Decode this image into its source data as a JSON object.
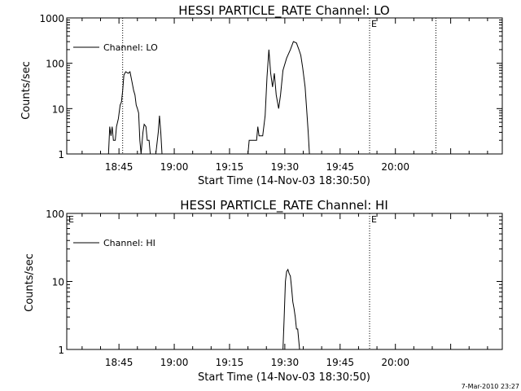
{
  "footer": {
    "stamp": "7-Mar-2010 23:27"
  },
  "chart_data": [
    {
      "type": "line",
      "title": "HESSI PARTICLE_RATE Channel: LO",
      "xlabel": "Start Time (14-Nov-03 18:30:50)",
      "ylabel": "Counts/sec",
      "yscale": "log",
      "ylim": [
        1,
        1000
      ],
      "yticks": [
        "1",
        "10",
        "100",
        "1000"
      ],
      "xlim": [
        "18:30:50",
        "20:29:00"
      ],
      "xticks": [
        "18:45",
        "19:00",
        "19:15",
        "19:30",
        "19:45",
        "20:00"
      ],
      "legend": {
        "position": "top-left",
        "entries": [
          "Channel: LO"
        ]
      },
      "markers": {
        "label": "E",
        "times": [
          "18:46:00",
          "19:53:00",
          "20:11:00"
        ]
      },
      "series": [
        {
          "name": "Channel: LO",
          "points": [
            [
              "18:42:00",
              1
            ],
            [
              "18:42:10",
              1
            ],
            [
              "18:42:30",
              4
            ],
            [
              "18:42:50",
              2.5
            ],
            [
              "18:43:10",
              4
            ],
            [
              "18:43:30",
              2
            ],
            [
              "18:44:00",
              2
            ],
            [
              "18:44:20",
              4
            ],
            [
              "18:44:50",
              6
            ],
            [
              "18:45:20",
              12
            ],
            [
              "18:45:40",
              14
            ],
            [
              "18:46:00",
              25
            ],
            [
              "18:46:20",
              55
            ],
            [
              "18:46:50",
              65
            ],
            [
              "18:47:30",
              60
            ],
            [
              "18:48:00",
              65
            ],
            [
              "18:48:30",
              40
            ],
            [
              "18:49:00",
              25
            ],
            [
              "18:49:20",
              20
            ],
            [
              "18:49:40",
              12
            ],
            [
              "18:50:00",
              10
            ],
            [
              "18:50:20",
              8
            ],
            [
              "18:50:40",
              2
            ],
            [
              "18:51:00",
              1
            ],
            [
              "18:51:30",
              3
            ],
            [
              "18:51:50",
              4.5
            ],
            [
              "18:52:20",
              4
            ],
            [
              "18:52:40",
              2
            ],
            [
              "18:53:10",
              2
            ],
            [
              "18:53:30",
              1
            ],
            [
              "18:55:00",
              1
            ],
            [
              "18:55:40",
              3
            ],
            [
              "18:56:00",
              7
            ],
            [
              "18:56:20",
              3
            ],
            [
              "18:56:40",
              1
            ],
            [
              "19:20:00",
              1
            ],
            [
              "19:20:20",
              2
            ],
            [
              "19:22:20",
              2
            ],
            [
              "19:22:40",
              4
            ],
            [
              "19:23:00",
              2.5
            ],
            [
              "19:24:00",
              2.5
            ],
            [
              "19:24:40",
              7
            ],
            [
              "19:25:10",
              50
            ],
            [
              "19:25:40",
              200
            ],
            [
              "19:26:10",
              60
            ],
            [
              "19:26:40",
              30
            ],
            [
              "19:27:10",
              60
            ],
            [
              "19:27:40",
              20
            ],
            [
              "19:28:20",
              10
            ],
            [
              "19:28:50",
              20
            ],
            [
              "19:29:30",
              70
            ],
            [
              "19:30:30",
              130
            ],
            [
              "19:31:30",
              200
            ],
            [
              "19:32:20",
              300
            ],
            [
              "19:33:10",
              280
            ],
            [
              "19:33:50",
              200
            ],
            [
              "19:34:20",
              150
            ],
            [
              "19:34:50",
              80
            ],
            [
              "19:35:30",
              30
            ],
            [
              "19:36:00",
              8
            ],
            [
              "19:36:20",
              3
            ],
            [
              "19:36:40",
              1
            ]
          ]
        }
      ]
    },
    {
      "type": "line",
      "title": "HESSI PARTICLE_RATE Channel: HI",
      "xlabel": "Start Time (14-Nov-03 18:30:50)",
      "ylabel": "Counts/sec",
      "yscale": "log",
      "ylim": [
        1,
        100
      ],
      "yticks": [
        "1",
        "10",
        "100"
      ],
      "xlim": [
        "18:30:50",
        "20:29:00"
      ],
      "xticks": [
        "18:45",
        "19:00",
        "19:15",
        "19:30",
        "19:45",
        "20:00"
      ],
      "legend": {
        "position": "top-left",
        "entries": [
          "Channel: HI"
        ]
      },
      "markers": {
        "label": "E",
        "times": [
          "18:30:50",
          "19:53:00"
        ]
      },
      "series": [
        {
          "name": "Channel: HI",
          "points": [
            [
              "19:29:30",
              1
            ],
            [
              "19:29:50",
              3
            ],
            [
              "19:30:10",
              10
            ],
            [
              "19:30:30",
              14
            ],
            [
              "19:30:50",
              15
            ],
            [
              "19:31:10",
              13
            ],
            [
              "19:31:30",
              12
            ],
            [
              "19:31:50",
              8
            ],
            [
              "19:32:10",
              5
            ],
            [
              "19:32:30",
              4
            ],
            [
              "19:32:50",
              3
            ],
            [
              "19:33:10",
              2
            ],
            [
              "19:33:30",
              2
            ],
            [
              "19:34:00",
              1
            ]
          ]
        }
      ]
    }
  ]
}
